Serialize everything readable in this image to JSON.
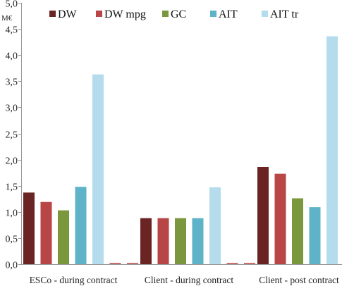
{
  "chart_data": {
    "type": "bar",
    "title": "",
    "ylabel": "M€",
    "xlabel": "",
    "ylim": [
      0,
      5
    ],
    "y_ticks": [
      "0,0",
      "0,5",
      "1,0",
      "1,5",
      "2,0",
      "2,5",
      "3,0",
      "3,5",
      "4,0",
      "4,5",
      "5,0"
    ],
    "categories": [
      "ESCo - during contract",
      "Client - during contract",
      "Client - post contract"
    ],
    "series": [
      {
        "name": "DW",
        "color": "#6b2424",
        "values": [
          1.37,
          0.88,
          1.86
        ]
      },
      {
        "name": "DW mpg",
        "color": "#b84646",
        "values": [
          1.19,
          0.88,
          1.73
        ]
      },
      {
        "name": "GC",
        "color": "#7a973d",
        "values": [
          1.03,
          0.88,
          1.26
        ]
      },
      {
        "name": "AIT",
        "color": "#5fb3c8",
        "values": [
          1.48,
          0.88,
          1.09
        ]
      },
      {
        "name": "AIT tr",
        "color": "#b4dced",
        "values": [
          3.63,
          1.47,
          4.36
        ]
      }
    ],
    "legend_position": "top",
    "grid": false
  }
}
